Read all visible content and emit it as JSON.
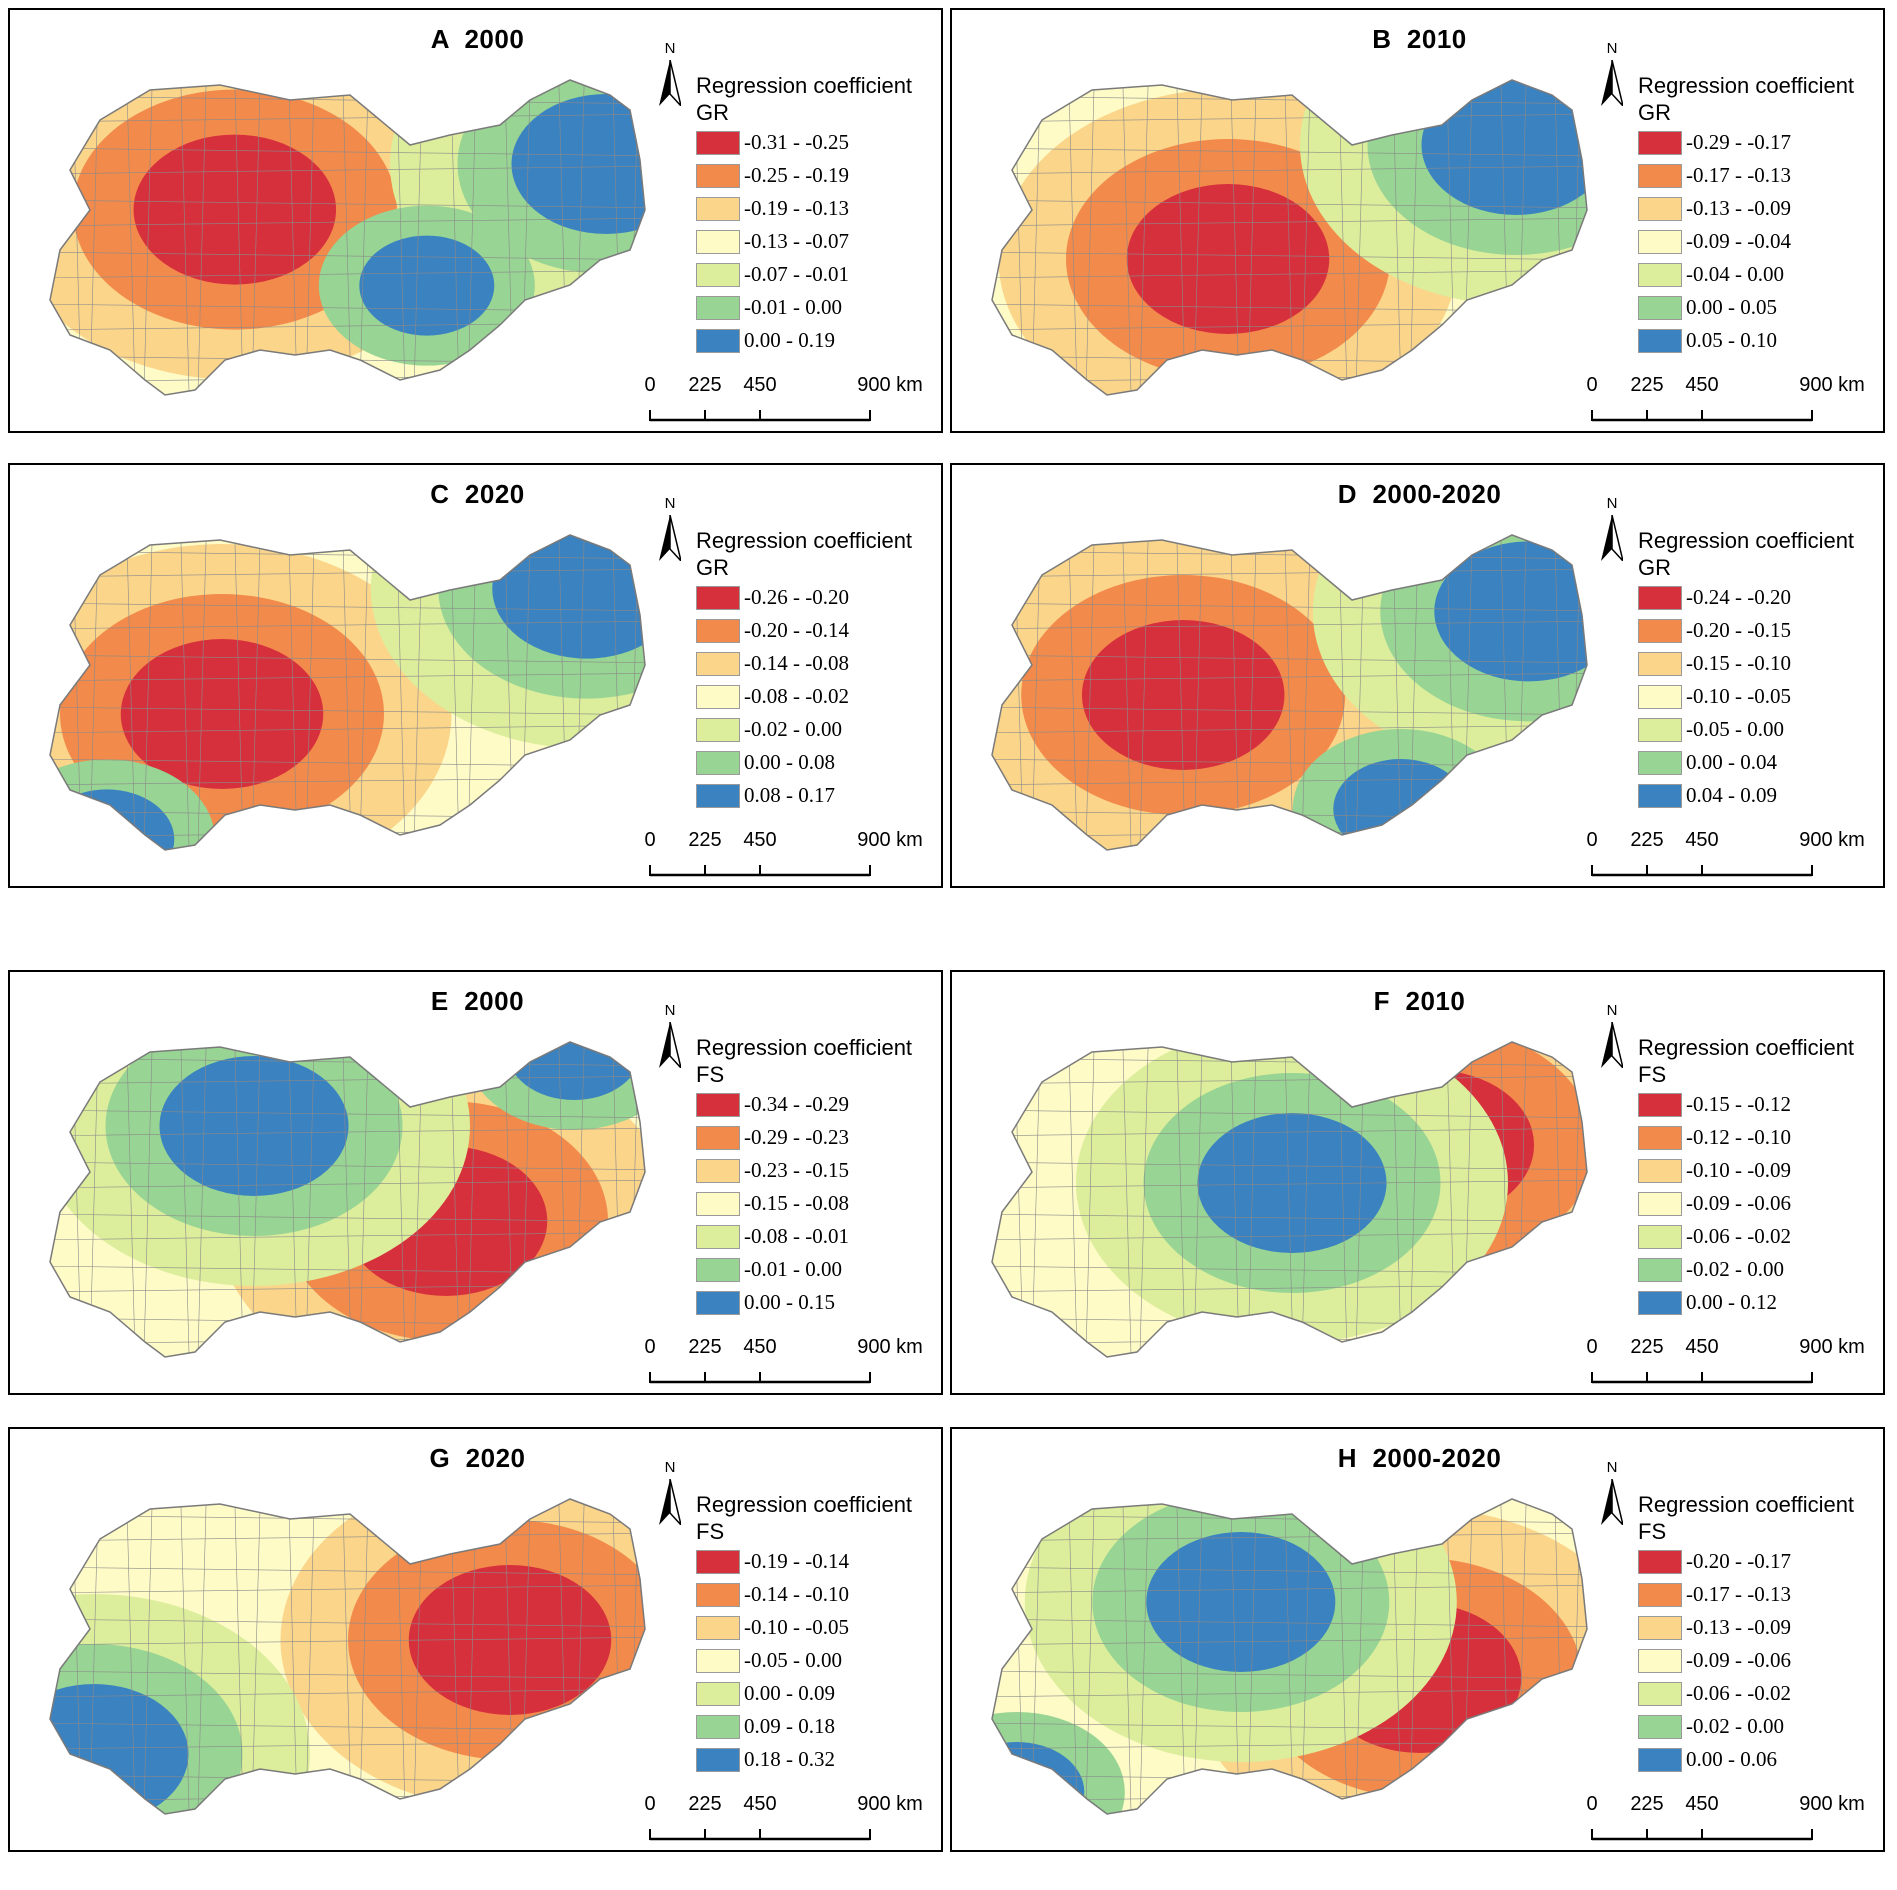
{
  "panels": [
    {
      "title": "A  2000",
      "legend_title": [
        "Regression coefficient",
        "GR"
      ],
      "legend": [
        "-0.31 - -0.25",
        "-0.25 - -0.19",
        "-0.19 - -0.13",
        "-0.13 - -0.07",
        "-0.07 - -0.01",
        "-0.01 - 0.00",
        "0.00 - 0.19"
      ],
      "hotspot": [
        0.32,
        0.42
      ],
      "coldspot": [
        0.9,
        0.3
      ],
      "coldspot2": [
        0.62,
        0.62
      ]
    },
    {
      "title": "B  2010",
      "legend_title": [
        "Regression coefficient",
        "GR"
      ],
      "legend": [
        "-0.29 - -0.17",
        "-0.17 - -0.13",
        "-0.13 - -0.09",
        "-0.09 - -0.04",
        "-0.04 - 0.00",
        "0.00 - 0.05",
        "0.05 - 0.10"
      ],
      "hotspot": [
        0.4,
        0.55
      ],
      "coldspot": [
        0.85,
        0.25
      ],
      "coldspot2": null
    },
    {
      "title": "C  2020",
      "legend_title": [
        "Regression coefficient",
        "GR"
      ],
      "legend": [
        "-0.26 - -0.20",
        "-0.20 - -0.14",
        "-0.14 - -0.08",
        "-0.08 - -0.02",
        "-0.02 - 0.00",
        "0.00 - 0.08",
        "0.08 - 0.17"
      ],
      "hotspot": [
        0.3,
        0.55
      ],
      "coldspot": [
        0.87,
        0.22
      ],
      "coldspot2": [
        0.12,
        0.88
      ]
    },
    {
      "title": "D  2000-2020",
      "legend_title": [
        "Regression coefficient",
        "GR"
      ],
      "legend": [
        "-0.24 - -0.20",
        "-0.20 - -0.15",
        "-0.15 - -0.10",
        "-0.10 - -0.05",
        "-0.05 - 0.00",
        "0.00 - 0.04",
        "0.04 - 0.09"
      ],
      "hotspot": [
        0.33,
        0.5
      ],
      "coldspot": [
        0.87,
        0.28
      ],
      "coldspot2": [
        0.67,
        0.8
      ]
    },
    {
      "title": "E  2000",
      "legend_title": [
        "Regression coefficient",
        "FS"
      ],
      "legend": [
        "-0.34 - -0.29",
        "-0.29 - -0.23",
        "-0.23 - -0.15",
        "-0.15 - -0.08",
        "-0.08 - -0.01",
        "-0.01 - 0.00",
        "0.00 - 0.15"
      ],
      "hotspot": [
        0.65,
        0.55
      ],
      "coldspot": [
        0.35,
        0.3
      ],
      "coldspot2": [
        0.85,
        0.1
      ]
    },
    {
      "title": "F  2010",
      "legend_title": [
        "Regression coefficient",
        "FS"
      ],
      "legend": [
        "-0.15 - -0.12",
        "-0.12 - -0.10",
        "-0.10 - -0.09",
        "-0.09 - -0.06",
        "-0.06 - -0.02",
        "-0.02 - 0.00",
        "0.00 - 0.12"
      ],
      "hotspot": [
        0.72,
        0.35
      ],
      "coldspot": [
        0.5,
        0.45
      ],
      "coldspot2": null
    },
    {
      "title": "G  2020",
      "legend_title": [
        "Regression coefficient",
        "FS"
      ],
      "legend": [
        "-0.19 - -0.14",
        "-0.14 - -0.10",
        "-0.10 - -0.05",
        "-0.05 - 0.00",
        "0.00 - 0.09",
        "0.09 - 0.18",
        "0.18 - 0.32"
      ],
      "hotspot": [
        0.75,
        0.45
      ],
      "coldspot": [
        0.1,
        0.75
      ],
      "coldspot2": null
    },
    {
      "title": "H  2000-2020",
      "legend_title": [
        "Regression coefficient",
        "FS"
      ],
      "legend": [
        "-0.20 - -0.17",
        "-0.17 - -0.13",
        "-0.13 - -0.09",
        "-0.09 - -0.06",
        "-0.06 - -0.02",
        "-0.02 - 0.00",
        "0.00 - 0.06"
      ],
      "hotspot": [
        0.7,
        0.55
      ],
      "coldspot": [
        0.42,
        0.35
      ],
      "coldspot2": [
        0.07,
        0.85
      ]
    }
  ],
  "colors": [
    "#d7303d",
    "#f28a4b",
    "#fbd58a",
    "#fefbc7",
    "#dcee9c",
    "#98d493",
    "#3b82c0"
  ],
  "north_label": "N",
  "scale_labels": [
    "0",
    "225",
    "450",
    "900 km"
  ]
}
